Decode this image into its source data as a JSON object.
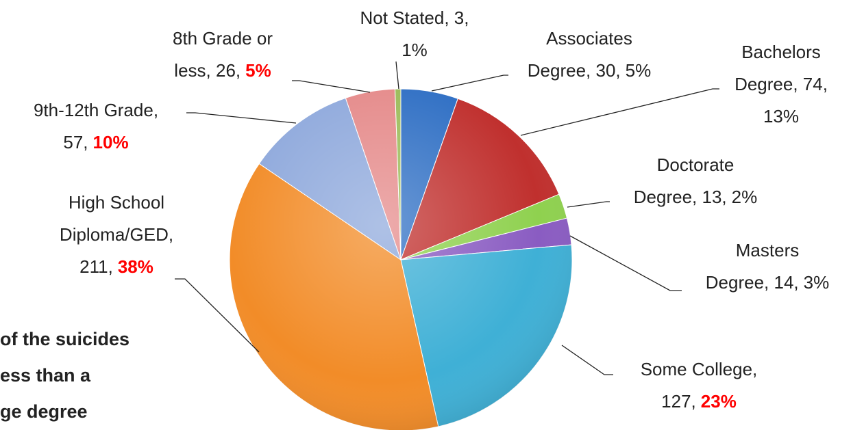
{
  "chart_data": {
    "type": "pie",
    "values": [
      30,
      74,
      13,
      14,
      127,
      211,
      57,
      26,
      3
    ],
    "colors": [
      "#2f6fc4",
      "#c0302e",
      "#8fd14f",
      "#8a5cc2",
      "#3fb0d6",
      "#f28c28",
      "#8fa9dc",
      "#e58a8a",
      "#9bbb59"
    ],
    "data_labels": [
      {
        "lines": [
          "Associates",
          "Degree, 30,"
        ],
        "percent": "5%",
        "highlight": false
      },
      {
        "lines": [
          "Bachelors",
          "Degree, 74,"
        ],
        "percent": "13%",
        "highlight": false
      },
      {
        "lines": [
          "Doctorate",
          "Degree, 13,"
        ],
        "percent": "2%",
        "highlight": false
      },
      {
        "lines": [
          "Masters",
          "Degree, 14,"
        ],
        "percent": "3%",
        "highlight": false
      },
      {
        "lines": [
          "Some College,",
          "127,"
        ],
        "percent": "23%",
        "highlight": true
      },
      {
        "lines": [
          "High School",
          "Diploma/GED,",
          "211,"
        ],
        "percent": "38%",
        "highlight": true
      },
      {
        "lines": [
          "9th-12th Grade,",
          "57,"
        ],
        "percent": "10%",
        "highlight": true
      },
      {
        "lines": [
          "8th Grade or",
          "less, 26,"
        ],
        "percent": "5%",
        "highlight": true
      },
      {
        "lines": [
          "Not Stated, 3,"
        ],
        "percent": "1%",
        "highlight": false
      }
    ],
    "highlight_color": "#ff0000",
    "annotation": [
      "of the suicides",
      "ess than a",
      "ge degree"
    ]
  }
}
